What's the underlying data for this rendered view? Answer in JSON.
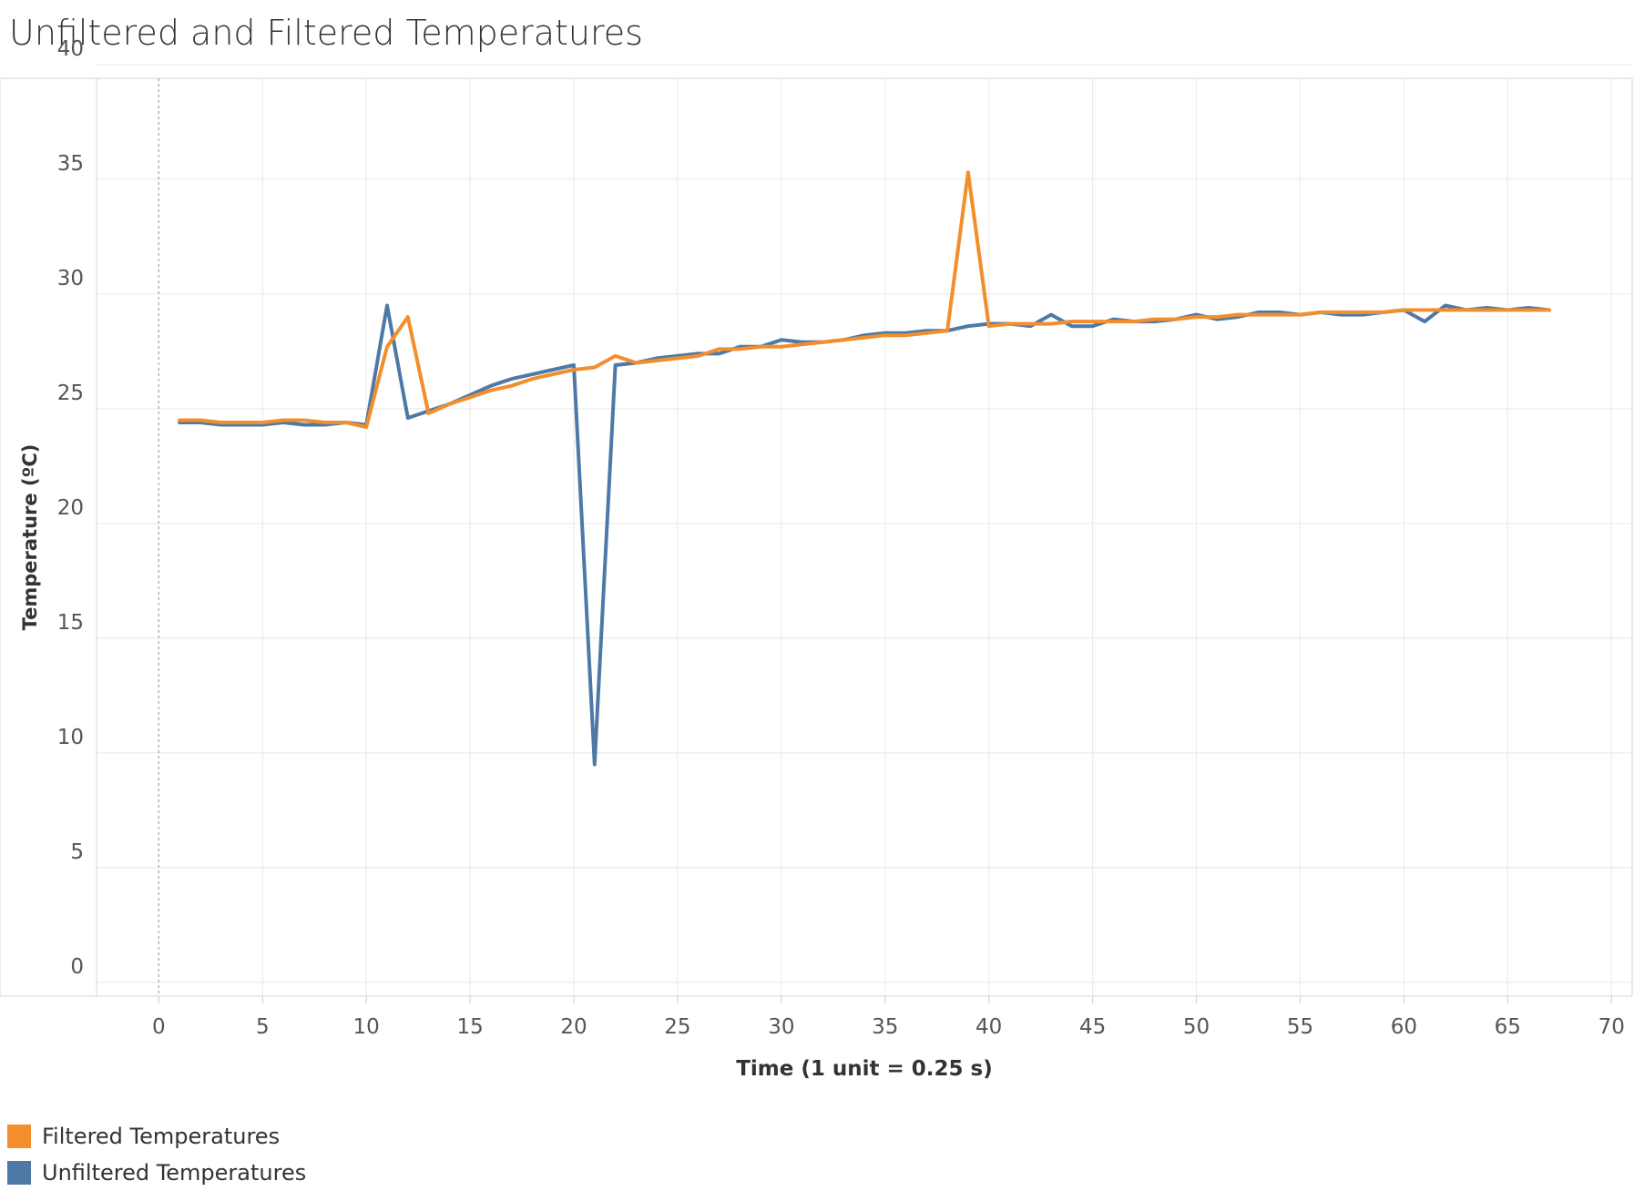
{
  "title": "Unfiltered and Filtered Temperatures",
  "legend": {
    "items": [
      {
        "label": "Filtered Temperatures",
        "color": "#f28e2b"
      },
      {
        "label": "Unfiltered Temperatures",
        "color": "#4e79a7"
      }
    ]
  },
  "chart_data": {
    "type": "line",
    "title": "Unfiltered and Filtered Temperatures",
    "xlabel": "Time (1 unit = 0.25 s)",
    "ylabel": "Temperature (ºC)",
    "xlim": [
      -3,
      71
    ],
    "ylim": [
      -0.6,
      39.4
    ],
    "x_ticks": [
      0,
      5,
      10,
      15,
      20,
      25,
      30,
      35,
      40,
      45,
      50,
      55,
      60,
      65,
      70
    ],
    "y_ticks": [
      0,
      5,
      10,
      15,
      20,
      25,
      30,
      35,
      40
    ],
    "grid": true,
    "legend_position": "bottom-left",
    "x": [
      1,
      2,
      3,
      4,
      5,
      6,
      7,
      8,
      9,
      10,
      11,
      12,
      13,
      14,
      15,
      16,
      17,
      18,
      19,
      20,
      21,
      22,
      23,
      24,
      25,
      26,
      27,
      28,
      29,
      30,
      31,
      32,
      33,
      34,
      35,
      36,
      37,
      38,
      39,
      40,
      41,
      42,
      43,
      44,
      45,
      46,
      47,
      48,
      49,
      50,
      51,
      52,
      53,
      54,
      55,
      56,
      57,
      58,
      59,
      60,
      61,
      62,
      63,
      64,
      65,
      66,
      67
    ],
    "series": [
      {
        "name": "Unfiltered Temperatures",
        "color": "#4e79a7",
        "values": [
          24.4,
          24.4,
          24.3,
          24.3,
          24.3,
          24.4,
          24.3,
          24.3,
          24.4,
          24.3,
          29.5,
          24.6,
          24.9,
          25.2,
          25.6,
          26.0,
          26.3,
          26.5,
          26.7,
          26.9,
          9.5,
          26.9,
          27.0,
          27.2,
          27.3,
          27.4,
          27.4,
          27.7,
          27.7,
          28.0,
          27.9,
          27.9,
          28.0,
          28.2,
          28.3,
          28.3,
          28.4,
          28.4,
          28.6,
          28.7,
          28.7,
          28.6,
          29.1,
          28.6,
          28.6,
          28.9,
          28.8,
          28.8,
          28.9,
          29.1,
          28.9,
          29.0,
          29.2,
          29.2,
          29.1,
          29.2,
          29.1,
          29.1,
          29.2,
          29.3,
          28.8,
          29.5,
          29.3,
          29.4,
          29.3,
          29.4,
          29.3
        ]
      },
      {
        "name": "Filtered Temperatures",
        "color": "#f28e2b",
        "values": [
          24.5,
          24.5,
          24.4,
          24.4,
          24.4,
          24.5,
          24.5,
          24.4,
          24.4,
          24.2,
          27.7,
          29.0,
          24.8,
          25.2,
          25.5,
          25.8,
          26.0,
          26.3,
          26.5,
          26.7,
          26.8,
          27.3,
          27.0,
          27.1,
          27.2,
          27.3,
          27.6,
          27.6,
          27.7,
          27.7,
          27.8,
          27.9,
          28.0,
          28.1,
          28.2,
          28.2,
          28.3,
          28.4,
          35.3,
          28.6,
          28.7,
          28.7,
          28.7,
          28.8,
          28.8,
          28.8,
          28.8,
          28.9,
          28.9,
          29.0,
          29.0,
          29.1,
          29.1,
          29.1,
          29.1,
          29.2,
          29.2,
          29.2,
          29.2,
          29.3,
          29.3,
          29.3,
          29.3,
          29.3,
          29.3,
          29.3,
          29.3
        ]
      }
    ]
  }
}
